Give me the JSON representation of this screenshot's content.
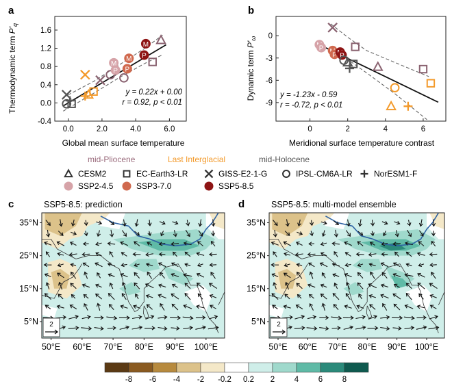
{
  "panel_labels": {
    "a": "a",
    "b": "b",
    "c": "c",
    "d": "d"
  },
  "chart_data": [
    {
      "type": "scatter",
      "panel": "a",
      "xlabel": "Global mean surface temperature",
      "ylabel": "Thermodynamic term P'q",
      "ylabel_main": "Thermodynamic term ",
      "ylabel_var": "P'",
      "ylabel_sub": "q",
      "xlim": [
        -0.8,
        7.0
      ],
      "ylim": [
        -0.4,
        1.9
      ],
      "xticks": [
        "0.0",
        "2.0",
        "4.0",
        "6.0"
      ],
      "xtick_values": [
        0,
        2,
        4,
        6
      ],
      "yticks": [
        "-0.4",
        "0.0",
        "0.4",
        "0.8",
        "1.2",
        "1.6"
      ],
      "ytick_values": [
        -0.4,
        0.0,
        0.4,
        0.8,
        1.2,
        1.6
      ],
      "fit": {
        "slope": 0.22,
        "intercept": 0.0,
        "x_range": [
          -0.3,
          5.8
        ]
      },
      "ci_upper": [
        [
          -0.3,
          0.12
        ],
        [
          1.5,
          0.47
        ],
        [
          3.0,
          0.83
        ],
        [
          4.5,
          1.19
        ],
        [
          5.6,
          1.49
        ]
      ],
      "ci_lower": [
        [
          -0.3,
          -0.18
        ],
        [
          1.5,
          0.21
        ],
        [
          3.0,
          0.55
        ],
        [
          4.5,
          0.86
        ],
        [
          5.6,
          1.06
        ]
      ],
      "eq_line1": "y = 0.22x + 0.00",
      "eq_line2": "r = 0.92, p < 0.01",
      "points": [
        {
          "model": "CESM2",
          "period": "SSP5-8.5",
          "x": 5.5,
          "y": 1.38
        },
        {
          "model": "EC-Earth3-LR",
          "period": "SSP5-8.5",
          "x": 5.0,
          "y": 0.9
        },
        {
          "model": "GISS-E2-1-G",
          "period": "SSP2-4.5",
          "x": 1.9,
          "y": 0.5
        },
        {
          "model": "IPSL-CM6A-LR",
          "period": "SSP2-4.5",
          "x": 2.5,
          "y": 0.62
        },
        {
          "model": "IPSL-CM6A-LR",
          "period": "SSP3-7.0",
          "x": 3.3,
          "y": 0.55
        },
        {
          "model": "mid-Pliocene",
          "period": "SSP2-4.5",
          "x": 2.7,
          "y": 0.88,
          "label": "M"
        },
        {
          "model": "mid-Pliocene",
          "period": "SSP2-4.5",
          "x": 2.8,
          "y": 0.72,
          "label": "P"
        },
        {
          "model": "mid-Pliocene",
          "period": "SSP3-7.0",
          "x": 3.6,
          "y": 0.98,
          "label": "M"
        },
        {
          "model": "mid-Pliocene",
          "period": "SSP3-7.0",
          "x": 3.5,
          "y": 0.75,
          "label": "P"
        },
        {
          "model": "mid-Pliocene",
          "period": "SSP5-8.5",
          "x": 4.6,
          "y": 1.3,
          "label": "M"
        },
        {
          "model": "mid-Pliocene",
          "period": "SSP5-8.5",
          "x": 4.5,
          "y": 1.05,
          "label": "P"
        },
        {
          "model": "GISS-E2-1-G",
          "period": "Last Interglacial",
          "x": 1.0,
          "y": 0.62
        },
        {
          "model": "EC-Earth3-LR",
          "period": "Last Interglacial",
          "x": 1.5,
          "y": 0.25
        },
        {
          "model": "CESM2",
          "period": "Last Interglacial",
          "x": 1.2,
          "y": 0.18
        },
        {
          "model": "NorESM1-F",
          "period": "Last Interglacial",
          "x": 1.0,
          "y": 0.15
        },
        {
          "model": "GISS-E2-1-G",
          "period": "mid-Holocene",
          "x": -0.1,
          "y": 0.18
        },
        {
          "model": "IPSL-CM6A-LR",
          "period": "mid-Holocene",
          "x": -0.1,
          "y": -0.02
        },
        {
          "model": "EC-Earth3-LR",
          "period": "mid-Holocene",
          "x": 0.2,
          "y": -0.02
        },
        {
          "model": "NorESM1-F",
          "period": "mid-Holocene",
          "x": 0.1,
          "y": 0.05
        }
      ]
    },
    {
      "type": "scatter",
      "panel": "b",
      "xlabel": "Meridional surface temperature contrast",
      "ylabel": "Dynamic term P'ω",
      "ylabel_main": "Dynamic term ",
      "ylabel_var": "P'",
      "ylabel_sub": "ω",
      "xlim": [
        -1.8,
        7.2
      ],
      "ylim": [
        -11.5,
        2.6
      ],
      "xticks": [
        "0",
        "2",
        "4",
        "6"
      ],
      "xtick_values": [
        0,
        2,
        4,
        6
      ],
      "yticks": [
        "-9",
        "-6",
        "-3",
        "0"
      ],
      "ytick_values": [
        -9,
        -6,
        -3,
        0
      ],
      "fit": {
        "slope": -1.23,
        "intercept": -0.59,
        "x_range": [
          0.8,
          6.8
        ]
      },
      "ci_upper": [
        [
          1.1,
          1.6
        ],
        [
          2.0,
          -0.2
        ],
        [
          3.0,
          -2.0
        ],
        [
          4.5,
          -3.6
        ],
        [
          6.3,
          -5.5
        ]
      ],
      "ci_lower": [
        [
          1.1,
          -2.2
        ],
        [
          2.0,
          -3.2
        ],
        [
          3.0,
          -5.0
        ],
        [
          4.5,
          -7.8
        ],
        [
          6.2,
          -11.3
        ]
      ],
      "eq_line1": "y = -1.23x - 0.59",
      "eq_line2": "r = -0.72, p < 0.01",
      "points": [
        {
          "model": "GISS-E2-1-G",
          "period": "SSP2-4.5",
          "x": 1.2,
          "y": 1.1
        },
        {
          "model": "EC-Earth3-LR",
          "period": "SSP5-8.5",
          "x": 2.4,
          "y": -1.5
        },
        {
          "model": "CESM2",
          "period": "SSP2-4.5",
          "x": 3.6,
          "y": -4.2
        },
        {
          "model": "EC-Earth3-LR",
          "period": "SSP2-4.5",
          "x": 6.0,
          "y": -4.5
        },
        {
          "model": "EC-Earth3-LR",
          "period": "Last Interglacial",
          "x": 6.4,
          "y": -6.4
        },
        {
          "model": "IPSL-CM6A-LR",
          "period": "Last Interglacial",
          "x": 4.5,
          "y": -7.0
        },
        {
          "model": "CESM2",
          "period": "Last Interglacial",
          "x": 4.3,
          "y": -9.5
        },
        {
          "model": "NorESM1-F",
          "period": "Last Interglacial",
          "x": 5.2,
          "y": -9.5
        },
        {
          "model": "mid-Pliocene",
          "period": "SSP2-4.5",
          "x": 0.5,
          "y": -1.2,
          "label": "M"
        },
        {
          "model": "mid-Pliocene",
          "period": "SSP2-4.5",
          "x": 0.6,
          "y": -1.6,
          "label": "P"
        },
        {
          "model": "mid-Pliocene",
          "period": "SSP3-7.0",
          "x": 1.2,
          "y": -2.0,
          "label": "M"
        },
        {
          "model": "mid-Pliocene",
          "period": "SSP3-7.0",
          "x": 1.3,
          "y": -2.5,
          "label": "P"
        },
        {
          "model": "mid-Pliocene",
          "period": "SSP5-8.5",
          "x": 1.6,
          "y": -2.2,
          "label": "M"
        },
        {
          "model": "mid-Pliocene",
          "period": "SSP5-8.5",
          "x": 1.7,
          "y": -2.6,
          "label": "P"
        },
        {
          "model": "IPSL-CM6A-LR",
          "period": "mid-Holocene",
          "x": 1.8,
          "y": -3.3
        },
        {
          "model": "CESM2",
          "period": "mid-Holocene",
          "x": 2.0,
          "y": -3.6
        },
        {
          "model": "NorESM1-F",
          "period": "mid-Holocene",
          "x": 2.1,
          "y": -4.4
        },
        {
          "model": "EC-Earth3-LR",
          "period": "mid-Holocene",
          "x": 2.3,
          "y": -3.8
        }
      ]
    },
    {
      "type": "heatmap",
      "panel": "c",
      "title": "SSP5-8.5: prediction",
      "xticks": [
        "50°E",
        "60°E",
        "70°E",
        "80°E",
        "90°E",
        "100°E"
      ],
      "yticks": [
        "35°N",
        "25°N",
        "15°N",
        "5°N"
      ],
      "vector_key": "2"
    },
    {
      "type": "heatmap",
      "panel": "d",
      "title": "SSP5-8.5: multi-model ensemble",
      "xticks": [
        "50°E",
        "60°E",
        "70°E",
        "80°E",
        "90°E",
        "100°E"
      ],
      "yticks": [
        "35°N",
        "25°N",
        "15°N",
        "5°N"
      ],
      "vector_key": "2"
    }
  ],
  "legend": {
    "periods": [
      {
        "name": "mid-Pliocene",
        "color": "#9a6b7c"
      },
      {
        "name": "Last Interglacial",
        "color": "#f39a2b"
      },
      {
        "name": "mid-Holocene",
        "color": "#555555"
      }
    ],
    "models": [
      {
        "name": "CESM2",
        "marker": "triangle"
      },
      {
        "name": "EC-Earth3-LR",
        "marker": "square"
      },
      {
        "name": "GISS-E2-1-G",
        "marker": "x"
      },
      {
        "name": "IPSL-CM6A-LR",
        "marker": "circle"
      },
      {
        "name": "NorESM1-F",
        "marker": "plus"
      }
    ],
    "scenarios": [
      {
        "name": "SSP2-4.5",
        "color": "#d6a3a8"
      },
      {
        "name": "SSP3-7.0",
        "color": "#d0694e"
      },
      {
        "name": "SSP5-8.5",
        "color": "#8e1414"
      }
    ]
  },
  "colorbar": {
    "labels": [
      "-8",
      "-6",
      "-4",
      "-2",
      "-0.2",
      "0.2",
      "2",
      "4",
      "6",
      "8"
    ],
    "colors": [
      "#5b3a14",
      "#8a5a20",
      "#b78a3e",
      "#dcc28a",
      "#f4e8c8",
      "#ffffff",
      "#cfeee9",
      "#9fd9cc",
      "#5fbaa6",
      "#2b8a7a",
      "#0f5a4f"
    ]
  }
}
